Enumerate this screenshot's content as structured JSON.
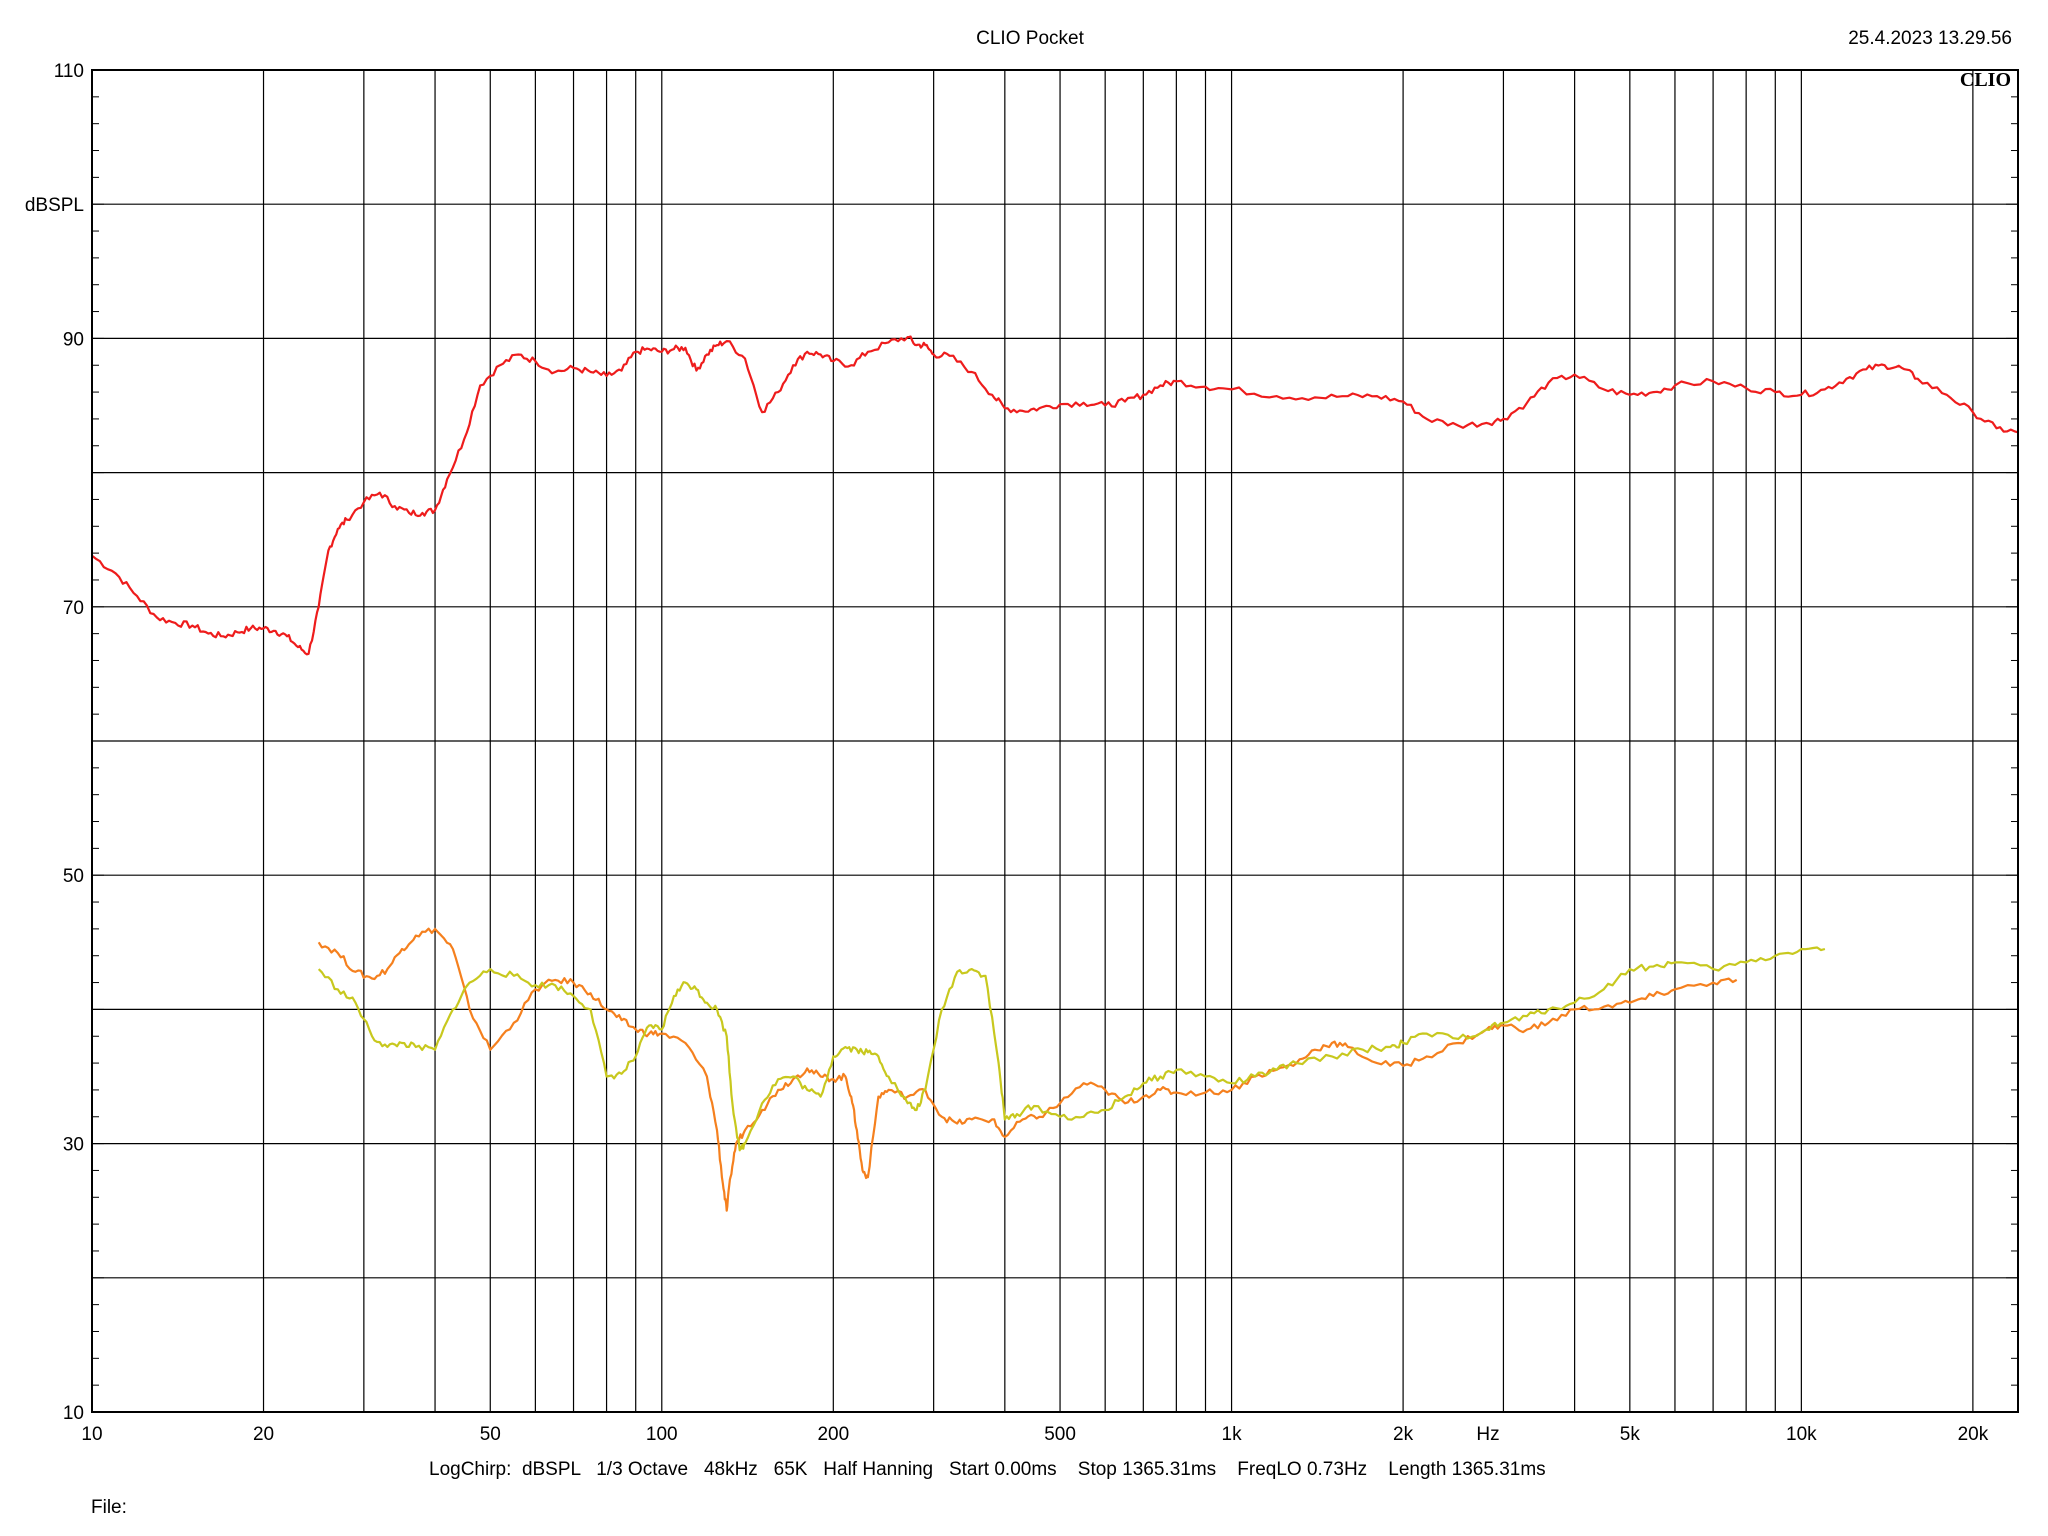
{
  "header": {
    "title": "CLIO Pocket",
    "timestamp": "25.4.2023 13.29.56",
    "logo": "CLIO"
  },
  "footer": {
    "params": "LogChirp:  dBSPL   1/3 Octave   48kHz   65K   Half Hanning   Start 0.00ms    Stop 1365.31ms    FreqLO 0.73Hz    Length 1365.31ms",
    "file_label": "File:"
  },
  "chart_data": {
    "type": "line",
    "x_scale": "log",
    "xlim": [
      10,
      24000
    ],
    "ylim": [
      10,
      110
    ],
    "ylabel": "dBSPL",
    "x_unit_label": "Hz",
    "grid": true,
    "x_ticks": [
      {
        "v": 10,
        "label": "10"
      },
      {
        "v": 20,
        "label": "20"
      },
      {
        "v": 50,
        "label": "50"
      },
      {
        "v": 100,
        "label": "100"
      },
      {
        "v": 200,
        "label": "200"
      },
      {
        "v": 500,
        "label": "500"
      },
      {
        "v": 1000,
        "label": "1k"
      },
      {
        "v": 2000,
        "label": "2k"
      },
      {
        "v": 5000,
        "label": "5k"
      },
      {
        "v": 10000,
        "label": "10k"
      },
      {
        "v": 20000,
        "label": "20k"
      }
    ],
    "y_ticks": [
      {
        "v": 110,
        "label": "110"
      },
      {
        "v": 90,
        "label": "90"
      },
      {
        "v": 70,
        "label": "70"
      },
      {
        "v": 50,
        "label": "50"
      },
      {
        "v": 30,
        "label": "30"
      },
      {
        "v": 10,
        "label": "10"
      }
    ],
    "series": [
      {
        "color": "#ee1c1c",
        "x": [
          10,
          11,
          12,
          13,
          14,
          15,
          16,
          17,
          18,
          19,
          20,
          21,
          22,
          23,
          24,
          25,
          26,
          27,
          28,
          30,
          32,
          34,
          36,
          38,
          40,
          42,
          45,
          48,
          52,
          56,
          60,
          65,
          70,
          75,
          80,
          85,
          90,
          95,
          100,
          105,
          110,
          115,
          120,
          125,
          130,
          140,
          150,
          160,
          170,
          180,
          190,
          200,
          215,
          230,
          250,
          270,
          280,
          290,
          300,
          320,
          350,
          380,
          400,
          430,
          460,
          500,
          550,
          600,
          650,
          700,
          750,
          800,
          900,
          1000,
          1200,
          1400,
          1600,
          1800,
          2000,
          2200,
          2500,
          2800,
          3000,
          3300,
          3600,
          4000,
          4500,
          5000,
          5500,
          6000,
          7000,
          8000,
          9000,
          10000,
          11000,
          12000,
          13000,
          14000,
          15000,
          16000,
          18000,
          20000,
          22000,
          24000
        ],
        "y": [
          73.8,
          72.5,
          70.8,
          69.2,
          68.8,
          68.6,
          68.0,
          67.8,
          68.1,
          68.4,
          68.4,
          68.2,
          67.8,
          67.0,
          66.5,
          70.0,
          74.2,
          75.8,
          76.5,
          77.8,
          78.5,
          77.5,
          77.0,
          77.0,
          77.2,
          79.5,
          82.5,
          86.5,
          88.0,
          88.8,
          88.3,
          87.5,
          87.8,
          87.5,
          87.2,
          87.6,
          89.0,
          89.2,
          89.0,
          89.2,
          89.3,
          87.6,
          88.8,
          89.5,
          89.8,
          88.5,
          84.5,
          86.0,
          88.0,
          89.0,
          88.8,
          88.3,
          88.0,
          89.0,
          89.7,
          90.1,
          89.5,
          89.5,
          88.8,
          88.7,
          87.5,
          85.8,
          84.8,
          84.6,
          84.8,
          85.1,
          85.2,
          85.0,
          85.3,
          85.8,
          86.5,
          86.8,
          86.4,
          86.2,
          85.7,
          85.6,
          85.7,
          85.7,
          85.3,
          84.0,
          83.5,
          83.7,
          84.0,
          85.2,
          86.7,
          87.3,
          86.2,
          85.8,
          86.0,
          86.5,
          86.8,
          86.3,
          86.0,
          85.8,
          86.2,
          87.0,
          87.7,
          88.0,
          87.8,
          87.0,
          85.8,
          84.5,
          83.3,
          83.0
        ]
      },
      {
        "color": "#f5801e",
        "x": [
          25,
          27,
          29,
          31,
          33,
          35,
          37,
          40,
          43,
          46,
          50,
          55,
          60,
          65,
          70,
          75,
          80,
          85,
          90,
          95,
          100,
          110,
          120,
          125,
          128,
          130,
          132,
          135,
          140,
          150,
          160,
          170,
          180,
          190,
          200,
          210,
          215,
          220,
          225,
          230,
          240,
          250,
          270,
          290,
          310,
          330,
          350,
          380,
          400,
          430,
          460,
          500,
          550,
          600,
          650,
          700,
          750,
          800,
          900,
          1000,
          1100,
          1200,
          1300,
          1400,
          1500,
          1600,
          1800,
          2000,
          2200,
          2500,
          2800,
          3000,
          3300,
          3600,
          4000,
          4500,
          5000,
          5500,
          6000,
          7000,
          7700
        ],
        "y": [
          45.0,
          44.2,
          42.8,
          42.3,
          43.0,
          44.5,
          45.5,
          46.0,
          44.5,
          40.0,
          37.0,
          39.0,
          41.5,
          42.2,
          42.0,
          41.2,
          40.0,
          39.2,
          38.5,
          38.2,
          38.2,
          37.5,
          35.0,
          31.0,
          27.0,
          25.0,
          27.5,
          30.0,
          31.0,
          32.5,
          34.0,
          34.8,
          35.6,
          35.0,
          34.8,
          35.0,
          33.5,
          31.0,
          28.0,
          27.5,
          33.5,
          34.0,
          33.5,
          34.0,
          32.0,
          31.5,
          31.8,
          31.8,
          30.5,
          31.8,
          32.0,
          33.0,
          34.5,
          34.0,
          33.0,
          33.5,
          34.0,
          33.8,
          33.8,
          34.0,
          35.0,
          35.5,
          36.0,
          37.0,
          37.5,
          37.2,
          36.0,
          35.8,
          36.5,
          37.5,
          38.5,
          38.8,
          38.5,
          39.0,
          40.0,
          40.2,
          40.5,
          41.0,
          41.5,
          42.0,
          42.2
        ]
      },
      {
        "color": "#c8c81e",
        "x": [
          25,
          27,
          29,
          31,
          33,
          35,
          37,
          40,
          43,
          46,
          50,
          55,
          60,
          65,
          70,
          75,
          80,
          85,
          90,
          95,
          100,
          105,
          110,
          115,
          120,
          125,
          130,
          133,
          137,
          140,
          150,
          160,
          170,
          180,
          190,
          200,
          210,
          220,
          230,
          240,
          250,
          270,
          280,
          290,
          310,
          330,
          350,
          370,
          390,
          400,
          420,
          450,
          500,
          550,
          600,
          650,
          700,
          750,
          800,
          900,
          1000,
          1100,
          1200,
          1300,
          1500,
          1700,
          1900,
          2000,
          2200,
          2500,
          2800,
          3000,
          3300,
          3600,
          4000,
          4500,
          5000,
          5500,
          6000,
          7000,
          8000,
          9000,
          10000,
          11000
        ],
        "y": [
          43.0,
          41.5,
          40.5,
          38.0,
          37.2,
          37.5,
          37.2,
          37.0,
          40.0,
          42.0,
          43.0,
          42.5,
          41.8,
          41.8,
          41.0,
          40.0,
          35.0,
          35.2,
          36.5,
          38.8,
          38.5,
          41.0,
          42.0,
          41.5,
          40.5,
          40.0,
          38.0,
          33.0,
          29.5,
          30.0,
          33.0,
          34.8,
          35.0,
          34.0,
          33.5,
          36.5,
          37.2,
          37.0,
          36.8,
          36.5,
          35.0,
          33.0,
          32.5,
          34.0,
          40.0,
          42.8,
          43.0,
          42.5,
          36.0,
          31.8,
          32.2,
          32.8,
          32.0,
          32.0,
          32.5,
          33.5,
          34.5,
          35.0,
          35.5,
          35.0,
          34.5,
          35.0,
          35.5,
          36.0,
          36.5,
          37.0,
          37.2,
          37.5,
          38.2,
          37.8,
          38.5,
          39.0,
          39.5,
          40.0,
          40.5,
          41.5,
          43.0,
          43.2,
          43.5,
          43.0,
          43.5,
          44.0,
          44.5,
          44.5
        ]
      }
    ]
  }
}
